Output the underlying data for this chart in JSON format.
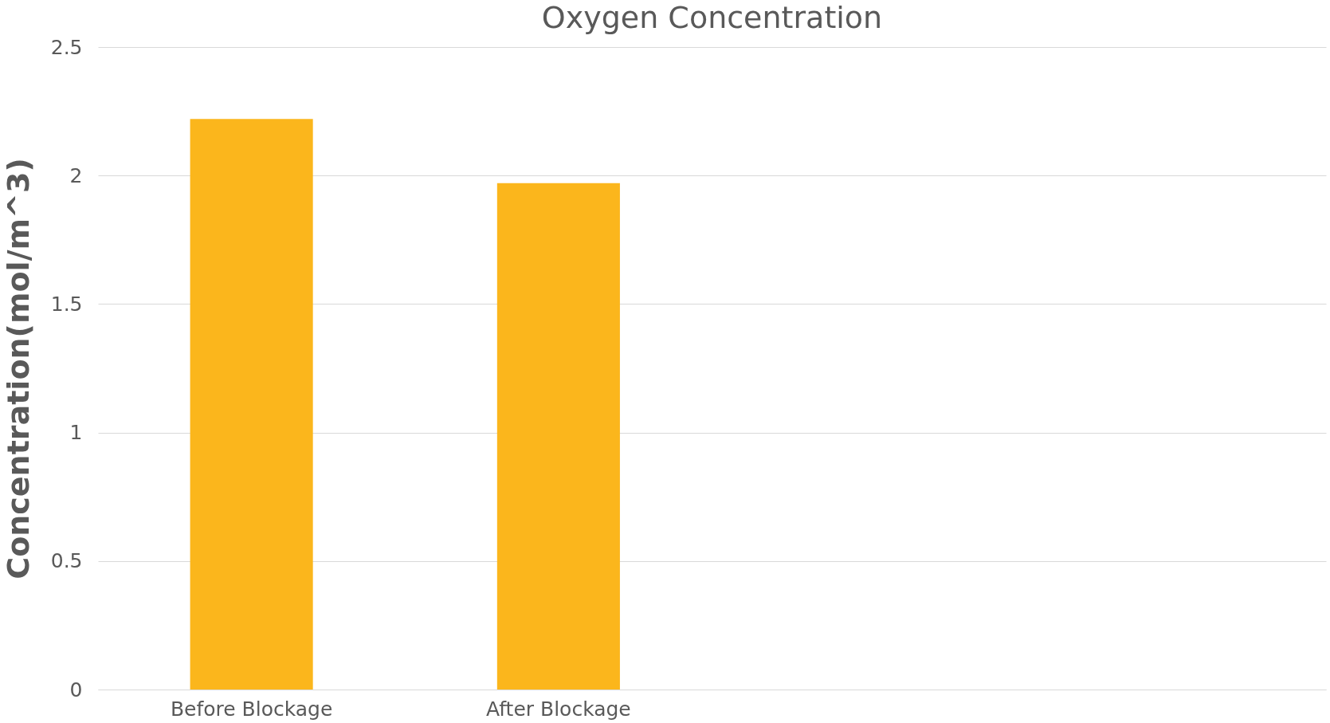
{
  "chart_data": {
    "type": "bar",
    "title": "Oxygen Concentration",
    "ylabel": "Concentration(mol/m^3)",
    "categories": [
      "Before Blockage",
      "After Blockage",
      null,
      null
    ],
    "series": [
      {
        "color": "#fbb61c",
        "values": [
          2.22,
          1.97,
          null,
          null
        ]
      }
    ],
    "ylim": [
      0,
      2.5
    ],
    "yticks": [
      0,
      0.5,
      1,
      1.5,
      2,
      2.5
    ],
    "grid": "y",
    "legend": false
  }
}
